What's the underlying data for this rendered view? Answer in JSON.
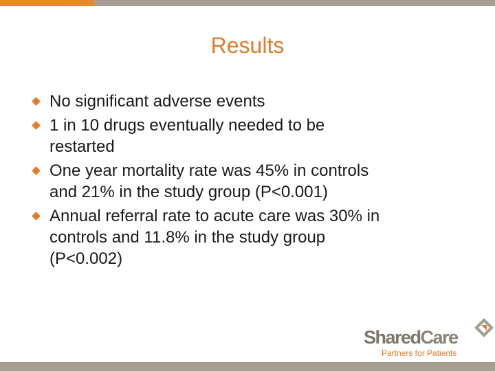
{
  "slide": {
    "title": "Results",
    "bullets": [
      {
        "line1": "No significant adverse events",
        "line2": "",
        "line3": ""
      },
      {
        "line1": "1 in 10 drugs eventually needed to be",
        "line2": "restarted",
        "line3": ""
      },
      {
        "line1": "One year mortality rate was 45% in  controls",
        "line2": "and 21% in the study group (P<0.001)",
        "line3": ""
      },
      {
        "line1": "Annual referral rate to acute care was 30% in",
        "line2": "controls and 11.8% in the study group",
        "line3": "(P<0.002)"
      }
    ],
    "logo": {
      "name_part1": "Shared",
      "name_part2": "Care",
      "tagline": "Partners for Patients"
    }
  },
  "colors": {
    "accent": "#e07c2a",
    "bar_grey": "#a59e92",
    "text": "#1a1a1a"
  },
  "icons": {
    "bullet": "orange-diamond",
    "logo_mark": "sharedcare-diamond-arrow-icon"
  }
}
